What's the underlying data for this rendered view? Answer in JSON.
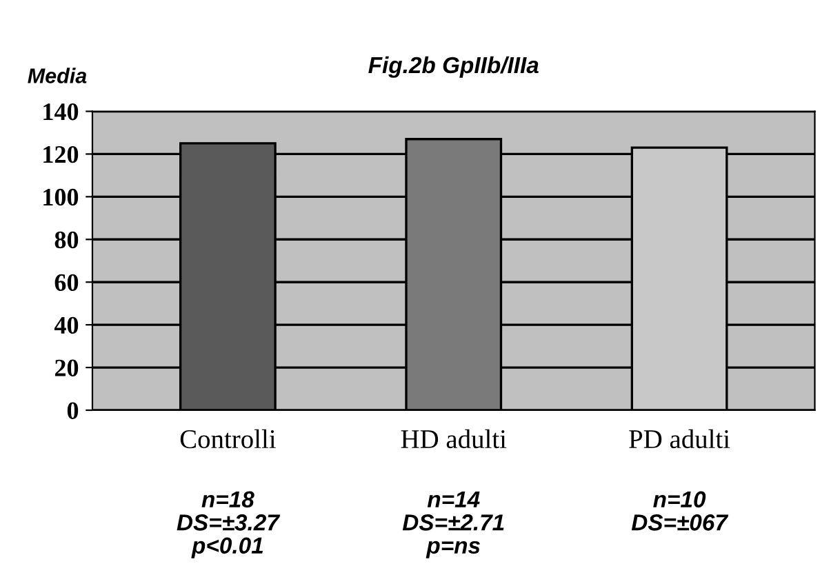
{
  "chart_data": {
    "type": "bar",
    "title": "Fig.2b GpIIb/IIIa",
    "ylabel": "Media",
    "categories": [
      "Controlli",
      "HD adulti",
      "PD adulti"
    ],
    "values": [
      125,
      127,
      123
    ],
    "colors": [
      "#5a5a5a",
      "#7a7a7a",
      "#c8c8c8"
    ],
    "ylim": [
      0,
      140
    ],
    "yticks": [
      0,
      20,
      40,
      60,
      80,
      100,
      120,
      140
    ],
    "grid": "y",
    "annotations": [
      "n=18\nDS=±3.27\np<0.01",
      "n=14\nDS=±2.71\np=ns",
      "n=10\nDS=±067"
    ]
  }
}
